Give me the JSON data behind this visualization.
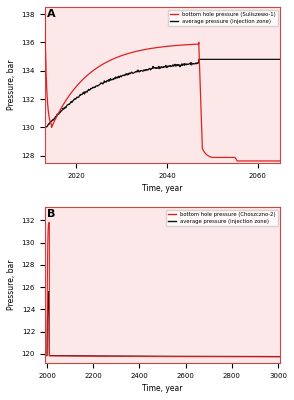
{
  "panel_A": {
    "title_label": "A",
    "xlabel": "Time, year",
    "ylabel": "Pressure, bar",
    "xlim": [
      2013,
      2065
    ],
    "ylim": [
      127.5,
      138.5
    ],
    "yticks": [
      128,
      130,
      132,
      134,
      136,
      138
    ],
    "xticks": [
      2020,
      2040,
      2060
    ],
    "legend_red": "bottom hole pressure (Suliszewo-1)",
    "legend_black": "average pressure (injection zone)",
    "bg_color": "#fce8e8",
    "line_color_red": "#dd2222",
    "line_color_black": "#111111",
    "inj_start": 2013,
    "inj_end": 2047,
    "t_end": 2065
  },
  "panel_B": {
    "title_label": "B",
    "xlabel": "Time, year",
    "ylabel": "Pressure, bar",
    "xlim": [
      1990,
      3010
    ],
    "ylim": [
      119.2,
      133.2
    ],
    "yticks": [
      120,
      122,
      124,
      126,
      128,
      130,
      132
    ],
    "xticks": [
      2000,
      2200,
      2400,
      2600,
      2800,
      3000
    ],
    "legend_red": "bottom hole pressure (Choszczno-2)",
    "legend_black": "average pressure (injection zone)",
    "bg_color": "#fce8e8",
    "line_color_red": "#dd2222",
    "line_color_black": "#111111",
    "t_start": 1990,
    "inj_start": 2000,
    "inj_end": 2010,
    "t_end": 3010
  }
}
